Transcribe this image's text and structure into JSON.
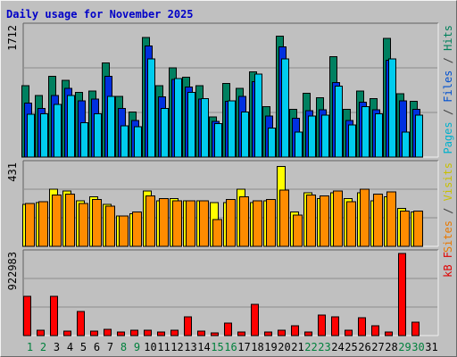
{
  "title": "Daily usage for November 2025",
  "chart_data": {
    "type": "bar",
    "title": "Daily usage for November 2025",
    "categories": [
      "1",
      "2",
      "3",
      "4",
      "5",
      "6",
      "7",
      "8",
      "9",
      "10",
      "11",
      "12",
      "13",
      "14",
      "15",
      "16",
      "17",
      "18",
      "19",
      "20",
      "21",
      "22",
      "23",
      "24",
      "25",
      "26",
      "27",
      "28",
      "29",
      "30",
      "31"
    ],
    "weekend_days": [
      "1",
      "2",
      "8",
      "9",
      "15",
      "16",
      "22",
      "23",
      "29",
      "30"
    ],
    "panels": [
      {
        "id": "hits",
        "max_label": "1712",
        "ylim": [
          0,
          1712
        ],
        "axis_label_parts": [
          {
            "text": "Pages",
            "color": "#00b0cc"
          },
          {
            "text": " / ",
            "color": "#404040"
          },
          {
            "text": "Files",
            "color": "#0050d0"
          },
          {
            "text": " / ",
            "color": "#404040"
          },
          {
            "text": "Hits",
            "color": "#00805a"
          }
        ],
        "series": [
          {
            "name": "Hits",
            "color": "#008060",
            "values": [
              940,
              810,
              1060,
              1010,
              850,
              870,
              1240,
              800,
              590,
              1570,
              940,
              1170,
              1050,
              940,
              530,
              970,
              900,
              1120,
              660,
              1590,
              630,
              840,
              780,
              1320,
              630,
              870,
              770,
              1560,
              830,
              730,
              0
            ]
          },
          {
            "name": "Files",
            "color": "#0030e0",
            "values": [
              710,
              640,
              810,
              900,
              740,
              760,
              1060,
              640,
              480,
              1460,
              790,
              1020,
              920,
              760,
              470,
              730,
              800,
              990,
              540,
              1450,
              510,
              610,
              620,
              980,
              480,
              720,
              620,
              1270,
              740,
              630,
              0
            ]
          },
          {
            "name": "Pages",
            "color": "#00ccee",
            "values": [
              560,
              570,
              690,
              810,
              450,
              570,
              800,
              410,
              400,
              1290,
              640,
              1030,
              850,
              770,
              440,
              740,
              590,
              1090,
              380,
              1290,
              330,
              540,
              550,
              930,
              420,
              660,
              570,
              1290,
              330,
              550,
              0
            ]
          }
        ]
      },
      {
        "id": "sites",
        "max_label": "431",
        "ylim": [
          0,
          431
        ],
        "axis_label_parts": [
          {
            "text": "Sites",
            "color": "#e87800"
          },
          {
            "text": " / ",
            "color": "#404040"
          },
          {
            "text": "Visits",
            "color": "#c8c000"
          }
        ],
        "series": [
          {
            "name": "Visits",
            "color": "#ffff00",
            "values": [
              220,
              230,
              300,
              290,
              240,
              260,
              220,
              160,
              170,
              290,
              240,
              250,
              240,
              240,
              230,
              230,
              300,
              230,
              240,
              420,
              180,
              280,
              250,
              280,
              250,
              280,
              240,
              260,
              200,
              180,
              0
            ]
          },
          {
            "name": "Sites",
            "color": "#ff8c00",
            "values": [
              225,
              235,
              270,
              275,
              225,
              245,
              210,
              160,
              180,
              265,
              250,
              240,
              240,
              240,
              140,
              245,
              260,
              240,
              245,
              295,
              165,
              270,
              265,
              290,
              235,
              300,
              275,
              285,
              185,
              185,
              0
            ]
          }
        ]
      },
      {
        "id": "kb",
        "max_label": "922983",
        "ylim": [
          0,
          922983
        ],
        "axis_label_parts": [
          {
            "text": "kB F",
            "color": "#e00000"
          }
        ],
        "series": [
          {
            "name": "kB F",
            "color": "#ff0000",
            "values": [
              440000,
              60000,
              440000,
              50000,
              270000,
              50000,
              70000,
              40000,
              60000,
              60000,
              40000,
              60000,
              210000,
              50000,
              30000,
              140000,
              40000,
              350000,
              40000,
              60000,
              110000,
              40000,
              230000,
              210000,
              60000,
              200000,
              110000,
              40000,
              922983,
              150000,
              0
            ]
          }
        ]
      }
    ]
  }
}
